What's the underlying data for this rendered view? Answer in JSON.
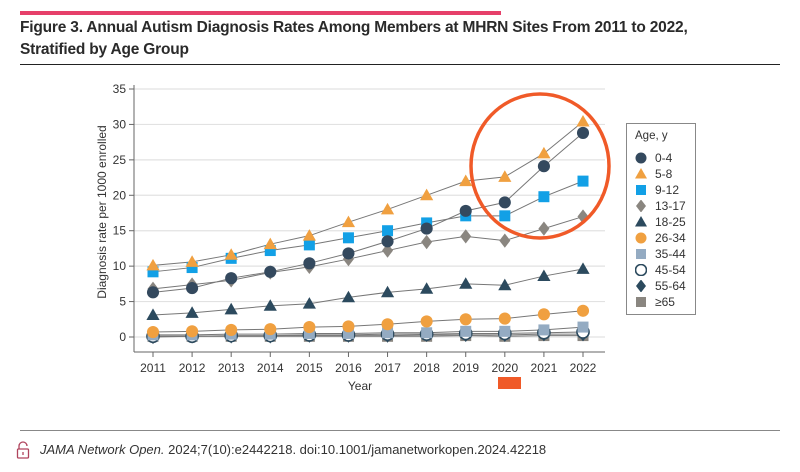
{
  "figure": {
    "title_line1": "Figure 3. Annual Autism Diagnosis Rates Among Members at MHRN Sites From 2011 to 2022,",
    "title_line2": "Stratified by Age Group",
    "accent_color": "#e6406a",
    "annotation_color": "#f05a28"
  },
  "citation": {
    "journal": "JAMA Network Open.",
    "reference": " 2024;7(10):e2442218. doi:10.1001/jamanetworkopen.2024.42218"
  },
  "chart_data": {
    "type": "line",
    "title": "Annual Autism Diagnosis Rates Among Members at MHRN Sites From 2011 to 2022, Stratified by Age Group",
    "xlabel": "Year",
    "ylabel": "Diagnosis rate per 1000 enrolled",
    "ylim": [
      0,
      35
    ],
    "yticks": [
      0,
      5,
      10,
      15,
      20,
      25,
      30,
      35
    ],
    "x": [
      2011,
      2012,
      2013,
      2014,
      2015,
      2016,
      2017,
      2018,
      2019,
      2020,
      2021,
      2022
    ],
    "grid": "horizontal",
    "legend_title": "Age, y",
    "legend_position": "right",
    "series": [
      {
        "name": "0-4",
        "marker": "circle",
        "color": "#34495e",
        "filled": true,
        "values": [
          6.3,
          6.9,
          8.3,
          9.2,
          10.4,
          11.8,
          13.5,
          15.3,
          17.8,
          19.0,
          24.1,
          28.8
        ]
      },
      {
        "name": "5-8",
        "marker": "triangle",
        "color": "#f0a040",
        "filled": true,
        "values": [
          10.1,
          10.6,
          11.6,
          13.1,
          14.3,
          16.2,
          18.0,
          20.0,
          22.0,
          22.6,
          25.9,
          30.4
        ]
      },
      {
        "name": "9-12",
        "marker": "square",
        "color": "#12a0e6",
        "filled": true,
        "values": [
          9.2,
          9.8,
          11.1,
          12.2,
          13.0,
          14.0,
          15.0,
          16.1,
          17.1,
          17.1,
          19.8,
          22.0
        ]
      },
      {
        "name": "13-17",
        "marker": "diamond",
        "color": "#8a8680",
        "filled": true,
        "values": [
          6.8,
          7.4,
          8.0,
          9.1,
          9.9,
          11.0,
          12.2,
          13.4,
          14.2,
          13.6,
          15.3,
          17.0
        ]
      },
      {
        "name": "18-25",
        "marker": "triangle",
        "color": "#2c4a5e",
        "filled": true,
        "values": [
          3.1,
          3.4,
          3.9,
          4.4,
          4.7,
          5.6,
          6.3,
          6.8,
          7.5,
          7.3,
          8.6,
          9.6
        ]
      },
      {
        "name": "26-34",
        "marker": "circle",
        "color": "#f0a040",
        "filled": true,
        "values": [
          0.7,
          0.8,
          1.0,
          1.1,
          1.4,
          1.5,
          1.8,
          2.2,
          2.5,
          2.6,
          3.2,
          3.7
        ]
      },
      {
        "name": "35-44",
        "marker": "square",
        "color": "#94abc2",
        "filled": true,
        "values": [
          0.3,
          0.3,
          0.4,
          0.4,
          0.5,
          0.5,
          0.6,
          0.6,
          0.8,
          0.8,
          1.0,
          1.4
        ]
      },
      {
        "name": "45-54",
        "marker": "circle",
        "color": "#2c4a5e",
        "filled": false,
        "values": [
          0.1,
          0.1,
          0.2,
          0.2,
          0.3,
          0.3,
          0.4,
          0.4,
          0.5,
          0.5,
          0.6,
          0.7
        ]
      },
      {
        "name": "55-64",
        "marker": "diamond",
        "color": "#2c4a5e",
        "filled": true,
        "values": [
          0.0,
          0.1,
          0.1,
          0.1,
          0.2,
          0.2,
          0.2,
          0.3,
          0.3,
          0.3,
          0.4,
          0.4
        ]
      },
      {
        "name": "≥65",
        "marker": "square",
        "color": "#8a8680",
        "filled": true,
        "values": [
          0.1,
          0.1,
          0.1,
          0.1,
          0.1,
          0.1,
          0.1,
          0.1,
          0.2,
          0.1,
          0.2,
          0.2
        ]
      }
    ],
    "annotations": [
      {
        "type": "ellipse",
        "description": "red circle highlighting 2020-2022 increase",
        "x_range": [
          2019.2,
          2022.4
        ],
        "y_range": [
          12,
          34
        ]
      },
      {
        "type": "marker",
        "description": "red box below 2020 tick",
        "x": 2020
      }
    ]
  }
}
